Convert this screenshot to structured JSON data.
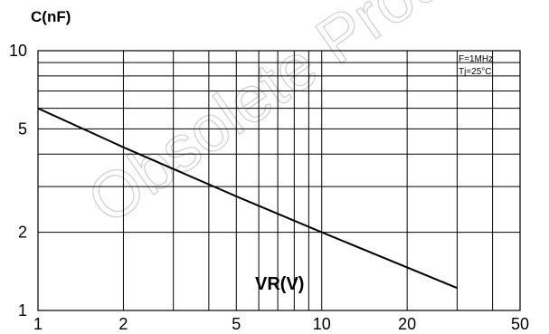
{
  "chart_data": {
    "type": "line",
    "xscale": "log",
    "yscale": "log",
    "xlim": [
      1,
      50
    ],
    "ylim": [
      1,
      10
    ],
    "x_ticks": [
      {
        "value": 1,
        "label": "1"
      },
      {
        "value": 2,
        "label": "2"
      },
      {
        "value": 5,
        "label": "5"
      },
      {
        "value": 10,
        "label": "10"
      },
      {
        "value": 20,
        "label": "20"
      },
      {
        "value": 50,
        "label": "50"
      }
    ],
    "y_ticks": [
      {
        "value": 1,
        "label": "1"
      },
      {
        "value": 2,
        "label": "2"
      },
      {
        "value": 5,
        "label": "5"
      },
      {
        "value": 10,
        "label": "10"
      }
    ],
    "ylabel": "C(nF)",
    "xlabel": "VR(V)",
    "grid": true,
    "legend_position": "top-right",
    "annotations": [
      "F=1MHz",
      "Tj=25°C"
    ],
    "series": [
      {
        "x": [
          1,
          2,
          5,
          10,
          30
        ],
        "y": [
          6,
          4.25,
          2.75,
          2,
          1.22
        ]
      }
    ]
  },
  "watermark": {
    "text": "Obsolete Product"
  },
  "colors": {
    "line": "#000000",
    "grid": "#000000",
    "watermark": "#cfcfcf"
  }
}
